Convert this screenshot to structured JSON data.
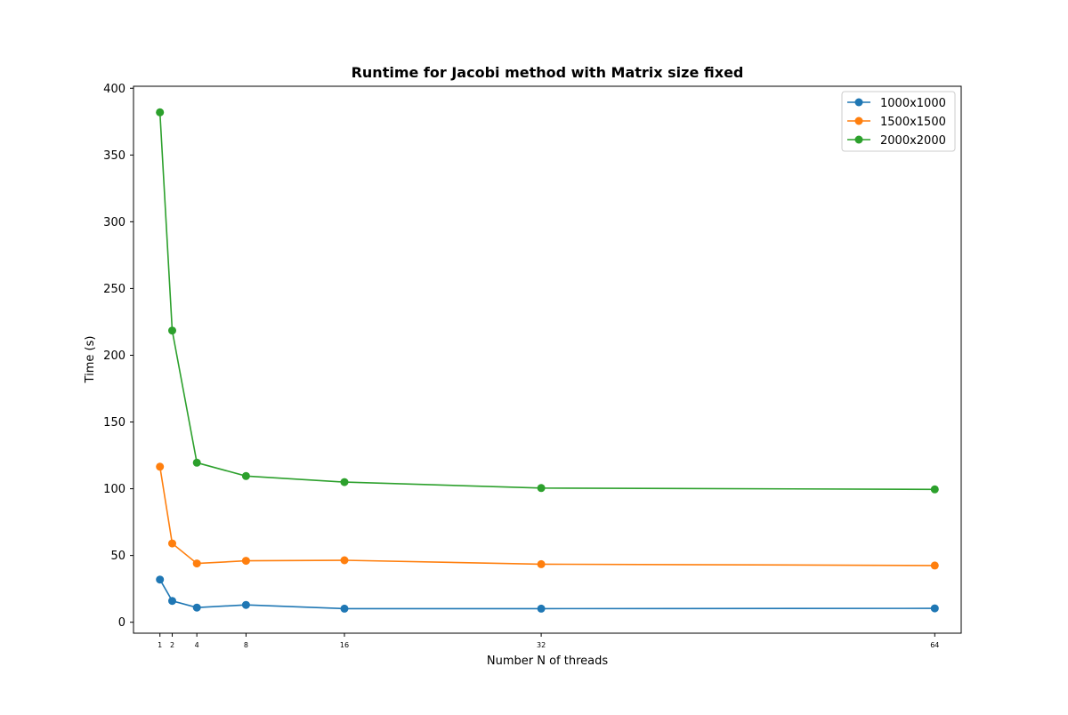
{
  "chart_data": {
    "type": "line",
    "title": "Runtime for Jacobi method with Matrix size fixed",
    "xlabel": "Number N of threads",
    "ylabel": "Time (s)",
    "x": [
      1,
      2,
      4,
      8,
      16,
      32,
      64
    ],
    "xticks": [
      "1",
      "2",
      "4",
      "8",
      "16",
      "32",
      "64"
    ],
    "yticks": [
      "0",
      "50",
      "100",
      "150",
      "200",
      "250",
      "300",
      "350",
      "400"
    ],
    "xlim": [
      -1.15,
      66.15
    ],
    "ylim": [
      -8.2,
      401.5
    ],
    "grid": false,
    "legend_position": "top-right",
    "markers": "circle",
    "series": [
      {
        "name": "1000x1000",
        "color": "#1f77b4",
        "values": [
          32,
          16,
          11,
          13,
          10.2,
          10.2,
          10.4
        ]
      },
      {
        "name": "1500x1500",
        "color": "#ff7f0e",
        "values": [
          116.5,
          59,
          44,
          46,
          46.4,
          43.5,
          42.5
        ]
      },
      {
        "name": "2000x2000",
        "color": "#2ca02c",
        "values": [
          382,
          218.5,
          119.5,
          109.5,
          105,
          100.5,
          99.5
        ]
      }
    ]
  }
}
